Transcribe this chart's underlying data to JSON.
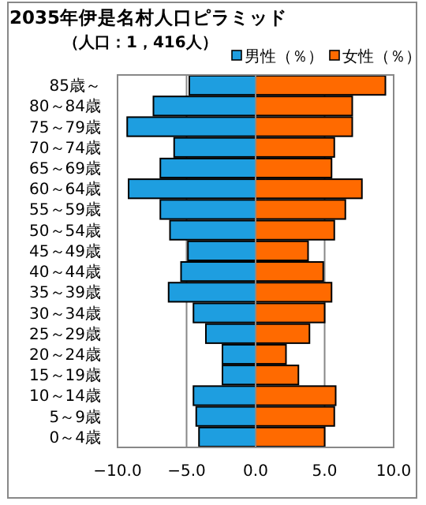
{
  "chart_data": {
    "type": "bar",
    "orientation": "horizontal",
    "stacked": true,
    "title": "2035年伊是名村人口ピラミッド",
    "subtitle": "（人口：1，416人）",
    "categories": [
      "85歳～",
      "80～84歳",
      "75～79歳",
      "70～74歳",
      "65～69歳",
      "60～64歳",
      "55～59歳",
      "50～54歳",
      "45～49歳",
      "40～44歳",
      "35～39歳",
      "30～34歳",
      "25～29歳",
      "20～24歳",
      "15～19歳",
      "10～14歳",
      "5～9歳",
      "0～4歳"
    ],
    "series": [
      {
        "name": "男性（％）",
        "color": "#1e9ee0",
        "values": [
          -4.8,
          -7.4,
          -9.3,
          -5.9,
          -6.9,
          -9.2,
          -6.9,
          -6.2,
          -4.9,
          -5.4,
          -6.3,
          -4.5,
          -3.6,
          -2.4,
          -2.4,
          -4.5,
          -4.3,
          -4.1
        ]
      },
      {
        "name": "女性（％）",
        "color": "#ff6a00",
        "values": [
          9.4,
          7.0,
          7.0,
          5.7,
          5.5,
          7.7,
          6.5,
          5.7,
          3.8,
          4.9,
          5.5,
          5.0,
          3.9,
          2.2,
          3.1,
          5.8,
          5.7,
          5.0
        ]
      }
    ],
    "xlim": [
      -10,
      10
    ],
    "xticks": [
      {
        "value": -10,
        "label": "−10.0"
      },
      {
        "value": -5,
        "label": "−5.0"
      },
      {
        "value": 0,
        "label": "0.0"
      },
      {
        "value": 5,
        "label": "5.0"
      },
      {
        "value": 10,
        "label": "10.0"
      }
    ],
    "grid": "x",
    "legend": "top right"
  }
}
